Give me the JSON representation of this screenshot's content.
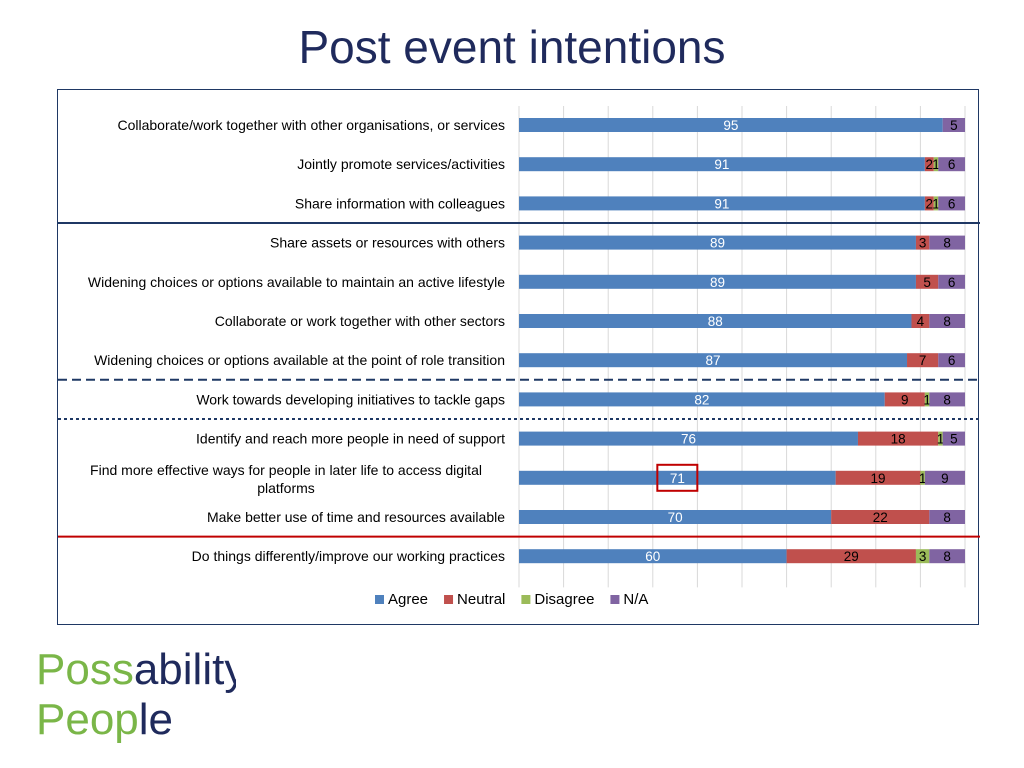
{
  "title": "Post event intentions",
  "chart_data": {
    "type": "bar",
    "orientation": "horizontal",
    "stacked": true,
    "categories": [
      "Collaborate/work together with other organisations, or services",
      "Jointly promote services/activities",
      "Share information with colleagues",
      "Share assets or resources with others",
      "Widening choices or options available to maintain an active lifestyle",
      "Collaborate or work together with other sectors",
      "Widening choices or options available at the point of role transition",
      "Work towards developing initiatives to tackle gaps",
      "Identify and reach more people in need of support",
      "Find more effective ways for people in later life to access digital platforms",
      "Make better use of time and resources available",
      "Do things differently/improve our working practices"
    ],
    "series": [
      {
        "name": "Agree",
        "color": "#4f81bd",
        "values": [
          95,
          91,
          91,
          89,
          89,
          88,
          87,
          82,
          76,
          71,
          70,
          60
        ]
      },
      {
        "name": "Neutral",
        "color": "#c0504d",
        "values": [
          0,
          2,
          2,
          3,
          5,
          4,
          7,
          9,
          18,
          19,
          22,
          29
        ]
      },
      {
        "name": "Disagree",
        "color": "#9bbb59",
        "values": [
          0,
          1,
          1,
          0,
          0,
          0,
          0,
          1,
          1,
          1,
          0,
          3
        ]
      },
      {
        "name": "N/A",
        "color": "#8064a2",
        "values": [
          5,
          6,
          6,
          8,
          6,
          8,
          6,
          8,
          5,
          9,
          8,
          8
        ]
      }
    ],
    "xlim": [
      0,
      100
    ],
    "grid": true,
    "legend": "bottom",
    "highlight": {
      "category_index": 9,
      "series": "Agree",
      "color": "#c00000"
    },
    "separators": [
      {
        "after_index": 2,
        "style": "solid",
        "color": "#1f3864"
      },
      {
        "after_index": 6,
        "style": "dashed",
        "color": "#1f3864"
      },
      {
        "after_index": 7,
        "style": "dotted",
        "color": "#1f3864"
      },
      {
        "after_index": 10,
        "style": "solid",
        "color": "#c00000"
      }
    ]
  },
  "logo": {
    "line1_prefix": "Poss",
    "line1_suffix": "ability",
    "line2_prefix": "Peop",
    "line2_suffix": "le",
    "color_green": "#7ab648",
    "color_navy": "#1f2a5c"
  }
}
